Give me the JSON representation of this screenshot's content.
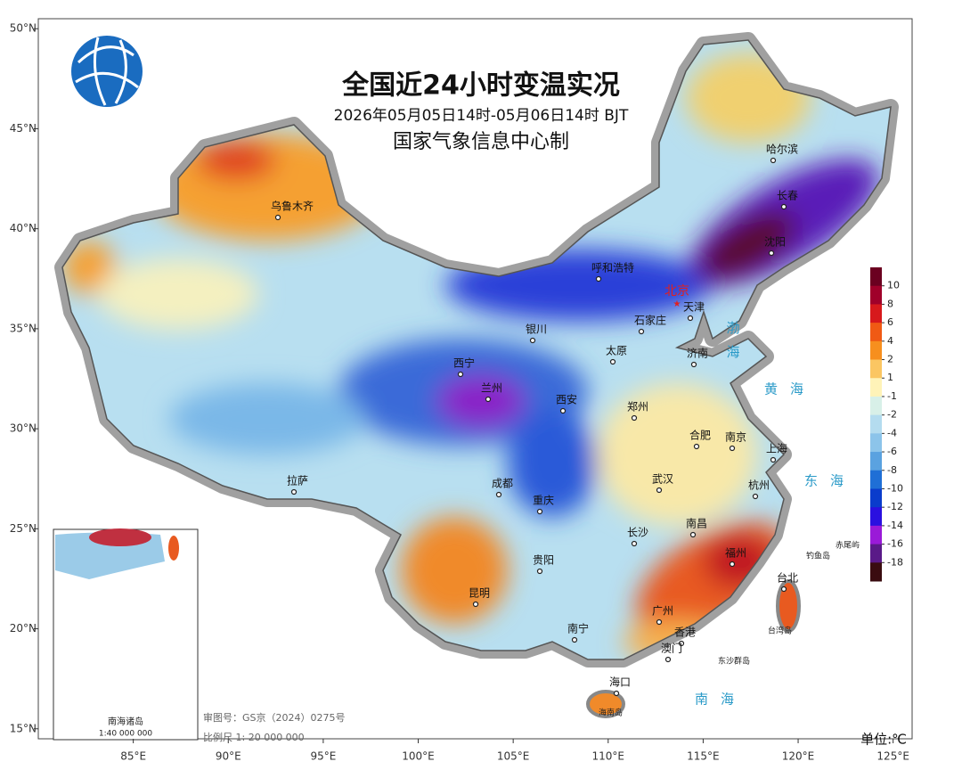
{
  "header": {
    "title": "全国近24小时变温实况",
    "subtitle": "2026年05月05日14时-05月06日14时 BJT",
    "issuer": "国家气象信息中心制"
  },
  "axes": {
    "xlim": [
      80,
      126
    ],
    "ylim": [
      14.5,
      50.5
    ],
    "xticks": [
      {
        "value": 85,
        "label": "85°E"
      },
      {
        "value": 90,
        "label": "90°E"
      },
      {
        "value": 95,
        "label": "95°E"
      },
      {
        "value": 100,
        "label": "100°E"
      },
      {
        "value": 105,
        "label": "105°E"
      },
      {
        "value": 110,
        "label": "110°E"
      },
      {
        "value": 115,
        "label": "115°E"
      },
      {
        "value": 120,
        "label": "120°E"
      },
      {
        "value": 125,
        "label": "125°E"
      }
    ],
    "yticks": [
      {
        "value": 50,
        "label": "50°N"
      },
      {
        "value": 45,
        "label": "45°N"
      },
      {
        "value": 40,
        "label": "40°N"
      },
      {
        "value": 35,
        "label": "35°N"
      },
      {
        "value": 30,
        "label": "30°N"
      },
      {
        "value": 25,
        "label": "25°N"
      },
      {
        "value": 20,
        "label": "20°N"
      },
      {
        "value": 15,
        "label": "15°N"
      }
    ]
  },
  "legend": {
    "ticks": [
      10,
      8,
      6,
      4,
      2,
      1,
      -1,
      -2,
      -4,
      -6,
      -8,
      -10,
      -12,
      -14,
      -16,
      -18
    ],
    "colors": [
      "#6b0020",
      "#a0002a",
      "#d7191c",
      "#f05a14",
      "#f78f1e",
      "#fbc662",
      "#fff3b8",
      "#d8f0e8",
      "#b4dcef",
      "#8cc4ea",
      "#5aa2e0",
      "#1f6fd6",
      "#0a3ccc",
      "#2a10e0",
      "#9a1ad8",
      "#5a1a88",
      "#3a0c10"
    ],
    "unit": "单位:℃"
  },
  "capital": "北京",
  "cities": [
    "乌鲁木齐",
    "哈尔滨",
    "长春",
    "沈阳",
    "呼和浩特",
    "天津",
    "银川",
    "石家庄",
    "太原",
    "济南",
    "西宁",
    "兰州",
    "西安",
    "郑州",
    "合肥",
    "南京",
    "上海",
    "拉萨",
    "成都",
    "武汉",
    "杭州",
    "重庆",
    "长沙",
    "南昌",
    "福州",
    "贵阳",
    "台北",
    "昆明",
    "广州",
    "南宁",
    "香港",
    "澳门",
    "海口"
  ],
  "seas": [
    "渤海",
    "黄海",
    "东海",
    "南海"
  ],
  "islands": [
    "台湾岛",
    "海南岛",
    "钓鱼岛",
    "赤尾屿",
    "东沙群岛"
  ],
  "inset": {
    "title": "南海诸岛",
    "scale": "1:40 000 000"
  },
  "footer": {
    "approval": "审图号：GS京（2024）0275号",
    "scale": "比例尺 1: 20 000 000"
  }
}
